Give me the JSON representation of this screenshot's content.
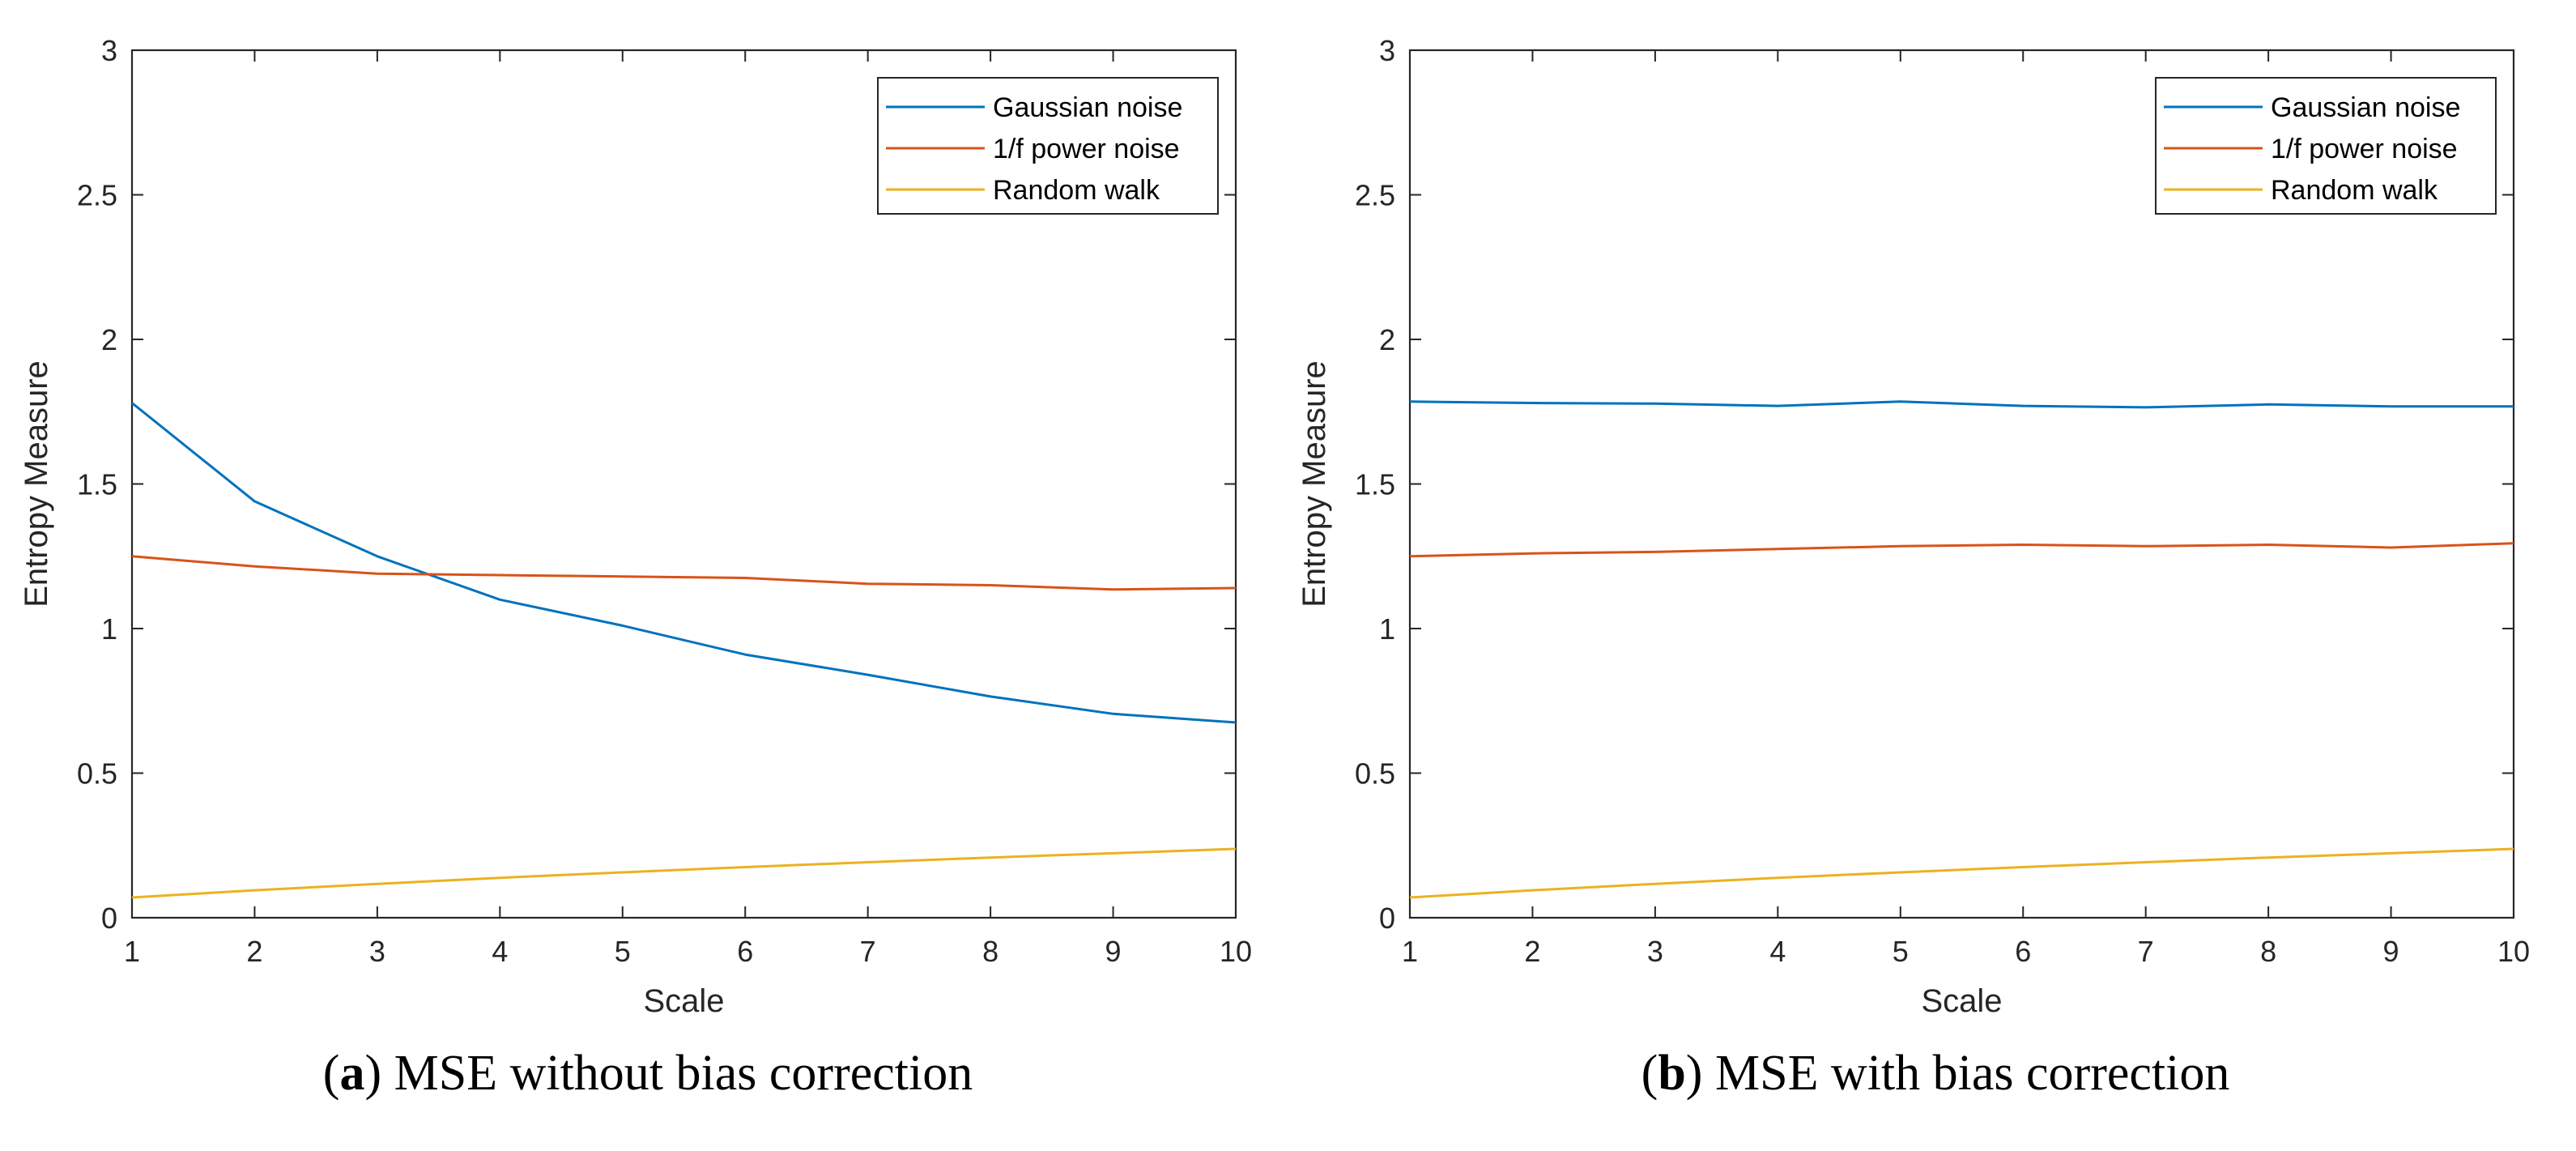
{
  "chart_data": [
    {
      "type": "line",
      "caption_letter": "a",
      "caption_text": "MSE without bias correction",
      "xlabel": "Scale",
      "ylabel": "Entropy Measure",
      "xlim": [
        1,
        10
      ],
      "ylim": [
        0,
        3
      ],
      "x_ticks": [
        1,
        2,
        3,
        4,
        5,
        6,
        7,
        8,
        9,
        10
      ],
      "y_ticks": [
        0,
        0.5,
        1,
        1.5,
        2,
        2.5,
        3
      ],
      "y_tick_labels": [
        "0",
        "0.5",
        "1",
        "1.5",
        "2",
        "2.5",
        "3"
      ],
      "grid": false,
      "legend_position": "top-right",
      "x": [
        1,
        2,
        3,
        4,
        5,
        6,
        7,
        8,
        9,
        10
      ],
      "series": [
        {
          "name": "Gaussian noise",
          "color": "#0072BD",
          "values": [
            1.78,
            1.44,
            1.25,
            1.1,
            1.01,
            0.91,
            0.84,
            0.765,
            0.705,
            0.675
          ]
        },
        {
          "name": "1/f power noise",
          "color": "#D95319",
          "values": [
            1.25,
            1.215,
            1.19,
            1.185,
            1.18,
            1.175,
            1.155,
            1.15,
            1.135,
            1.14
          ]
        },
        {
          "name": "Random walk",
          "color": "#EDB120",
          "values": [
            0.07,
            0.095,
            0.117,
            0.138,
            0.157,
            0.175,
            0.192,
            0.208,
            0.223,
            0.238
          ]
        }
      ]
    },
    {
      "type": "line",
      "caption_letter": "b",
      "caption_text": "MSE with bias correction",
      "xlabel": "Scale",
      "ylabel": "Entropy Measure",
      "xlim": [
        1,
        10
      ],
      "ylim": [
        0,
        3
      ],
      "x_ticks": [
        1,
        2,
        3,
        4,
        5,
        6,
        7,
        8,
        9,
        10
      ],
      "y_ticks": [
        0,
        0.5,
        1,
        1.5,
        2,
        2.5,
        3
      ],
      "y_tick_labels": [
        "0",
        "0.5",
        "1",
        "1.5",
        "2",
        "2.5",
        "3"
      ],
      "grid": false,
      "legend_position": "top-right",
      "x": [
        1,
        2,
        3,
        4,
        5,
        6,
        7,
        8,
        9,
        10
      ],
      "series": [
        {
          "name": "Gaussian noise",
          "color": "#0072BD",
          "values": [
            1.785,
            1.78,
            1.778,
            1.77,
            1.785,
            1.77,
            1.765,
            1.775,
            1.768,
            1.768
          ]
        },
        {
          "name": "1/f power noise",
          "color": "#D95319",
          "values": [
            1.25,
            1.26,
            1.265,
            1.275,
            1.285,
            1.29,
            1.285,
            1.29,
            1.28,
            1.295
          ]
        },
        {
          "name": "Random walk",
          "color": "#EDB120",
          "values": [
            0.07,
            0.095,
            0.117,
            0.138,
            0.157,
            0.175,
            0.192,
            0.208,
            0.223,
            0.238
          ]
        }
      ]
    }
  ]
}
